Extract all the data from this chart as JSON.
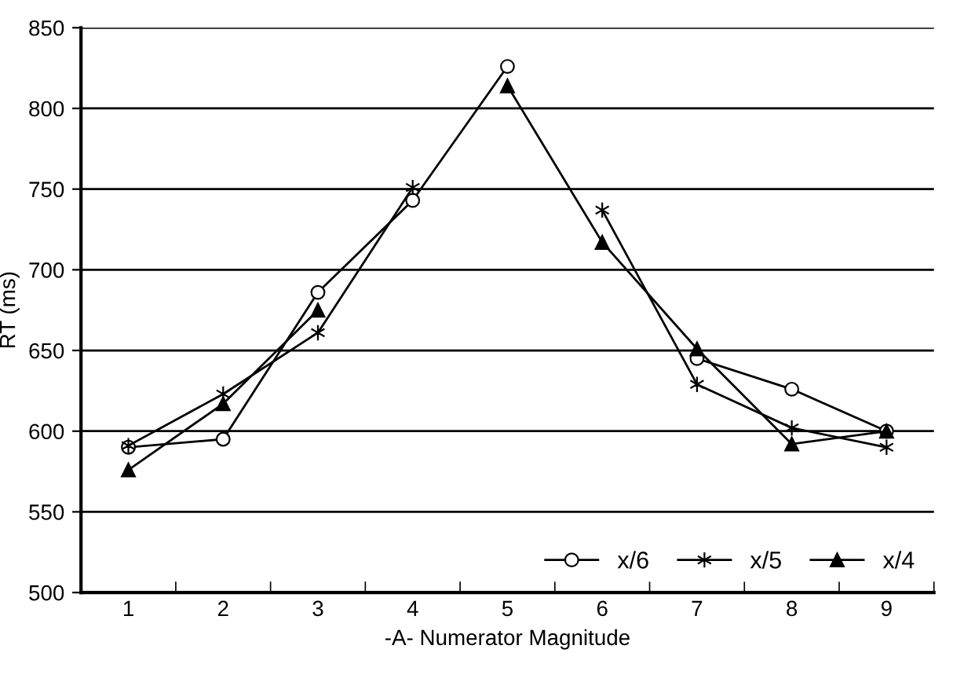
{
  "chart_data": {
    "type": "line",
    "xlabel": "-A- Numerator Magnitude",
    "ylabel": "RT (ms)",
    "categories": [
      "1",
      "2",
      "3",
      "4",
      "5",
      "6",
      "7",
      "8",
      "9"
    ],
    "series": [
      {
        "name": "x/6",
        "color": "#000000",
        "marker": "circle",
        "values": [
          590,
          595,
          686,
          743,
          826,
          null,
          645,
          626,
          600
        ]
      },
      {
        "name": "x/5",
        "color": "#000000",
        "marker": "cross",
        "values": [
          591,
          623,
          661,
          751,
          null,
          737,
          629,
          602,
          590
        ]
      },
      {
        "name": "x/4",
        "color": "#000000",
        "marker": "triangle",
        "values": [
          576,
          617,
          675,
          null,
          814,
          717,
          651,
          592,
          600
        ]
      }
    ],
    "ylim": [
      500,
      850
    ],
    "yticks": [
      500,
      550,
      600,
      650,
      700,
      750,
      800,
      850
    ],
    "grid": "y",
    "legend": "bottom right"
  }
}
